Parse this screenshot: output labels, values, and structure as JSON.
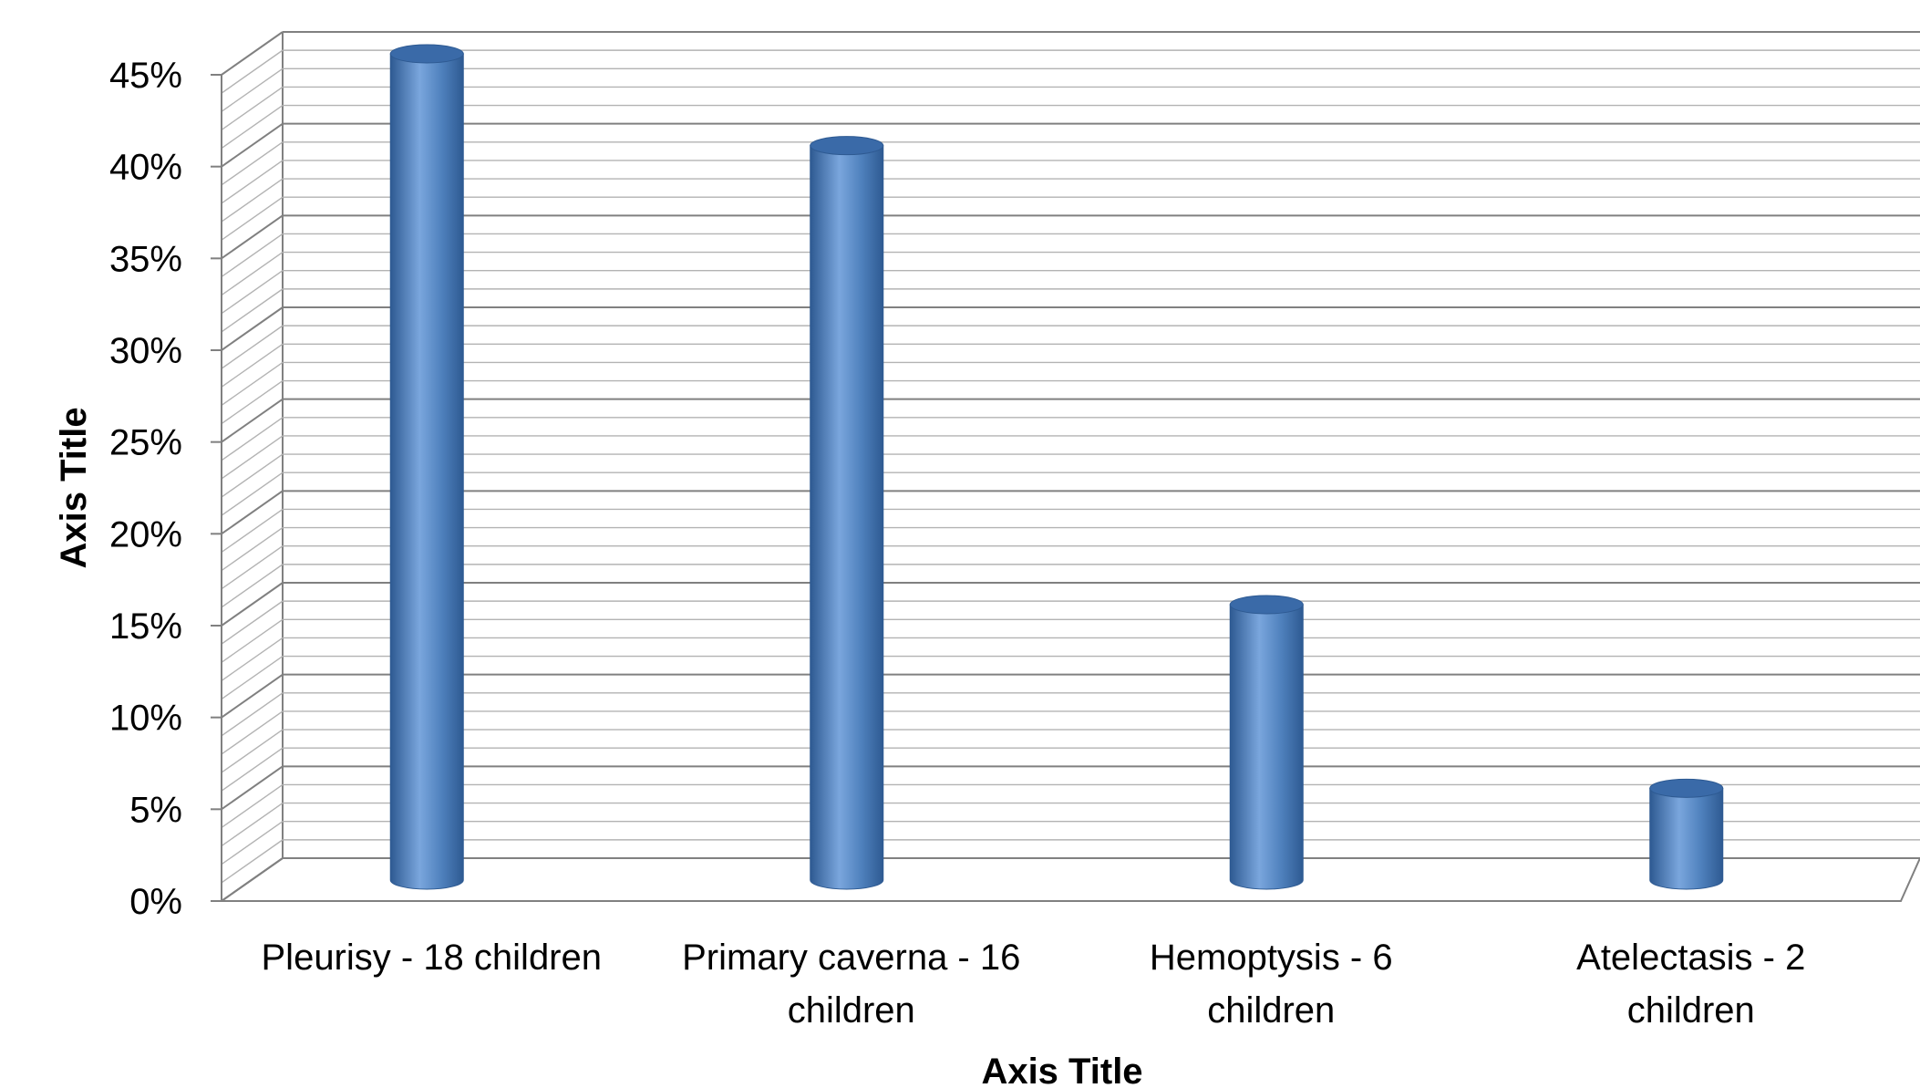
{
  "chart_data": {
    "type": "bar",
    "style": "3d-cylinder",
    "categories": [
      [
        "Pleurisy - 18 children"
      ],
      [
        "Primary caverna - 16",
        "children"
      ],
      [
        "Hemoptysis - 6",
        "children"
      ],
      [
        "Atelectasis - 2",
        "children"
      ]
    ],
    "values": [
      0.45,
      0.4,
      0.15,
      0.05
    ],
    "ylim": [
      0,
      0.45
    ],
    "yticks": [
      "0%",
      "5%",
      "10%",
      "15%",
      "20%",
      "25%",
      "30%",
      "35%",
      "40%",
      "45%"
    ],
    "xlabel": "Axis Title",
    "ylabel": "Axis Title",
    "grid": true,
    "colors": {
      "bar": "#4f81bd",
      "bar_light": "#7aa6dd",
      "bar_dark": "#2e5a92",
      "bar_top": "#3a6aa8",
      "grid": "#808080",
      "minor_grid": "#b3b3b3",
      "axis": "#808080"
    }
  }
}
